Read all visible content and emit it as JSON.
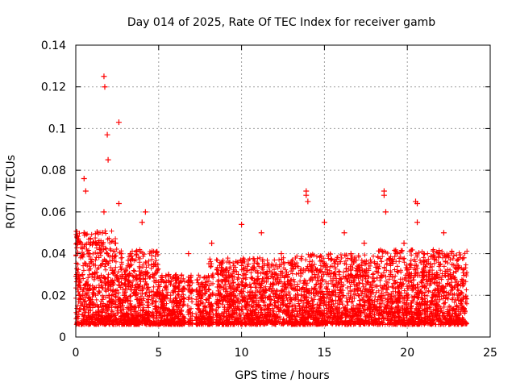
{
  "chart_data": {
    "type": "scatter",
    "title": "Day 014 of 2025, Rate Of TEC Index for receiver gamb",
    "xlabel": "GPS time / hours",
    "ylabel": "ROTI / TECUs",
    "xlim": [
      0,
      25
    ],
    "ylim": [
      0,
      0.14
    ],
    "xticks": [
      "0",
      "5",
      "10",
      "15",
      "20",
      "25"
    ],
    "yticks": [
      "0",
      "0.02",
      "0.04",
      "0.06",
      "0.08",
      "0.1",
      "0.12",
      "0.14"
    ],
    "grid": true,
    "marker": "plus",
    "color": "#ff0000",
    "series": [
      {
        "name": "ROTI",
        "x": [
          0.1,
          0.2,
          0.3,
          0.4,
          0.5,
          0.6,
          0.7,
          0.8,
          0.9,
          1.0,
          1.2,
          1.4,
          1.6,
          1.7,
          1.8,
          1.9,
          2.0,
          2.2,
          2.4,
          2.6,
          2.8,
          3.0,
          3.3,
          3.6,
          4.0,
          4.2,
          4.4,
          4.7,
          5.0,
          5.3,
          5.6,
          6.0,
          6.4,
          6.8,
          7.0,
          7.4,
          7.8,
          8.2,
          8.6,
          9.0,
          9.4,
          9.8,
          10.0,
          10.4,
          10.8,
          11.2,
          11.6,
          12.0,
          12.4,
          12.8,
          13.2,
          13.6,
          13.9,
          14.0,
          14.4,
          14.8,
          15.0,
          15.4,
          15.8,
          16.2,
          16.6,
          17.0,
          17.4,
          17.8,
          18.2,
          18.6,
          18.7,
          19.0,
          19.4,
          19.8,
          20.2,
          20.5,
          20.6,
          21.0,
          21.4,
          21.8,
          22.2,
          22.6,
          23.0,
          23.4,
          0.5,
          0.6,
          1.7,
          1.75,
          1.9,
          1.95,
          2.6,
          2.6,
          4.2,
          10.0,
          13.9,
          18.6,
          20.6
        ],
        "y": [
          0.045,
          0.02,
          0.015,
          0.03,
          0.05,
          0.035,
          0.025,
          0.04,
          0.018,
          0.03,
          0.045,
          0.022,
          0.05,
          0.06,
          0.035,
          0.04,
          0.02,
          0.032,
          0.045,
          0.025,
          0.015,
          0.03,
          0.04,
          0.02,
          0.055,
          0.03,
          0.018,
          0.035,
          0.025,
          0.02,
          0.03,
          0.028,
          0.018,
          0.04,
          0.022,
          0.015,
          0.025,
          0.045,
          0.03,
          0.025,
          0.018,
          0.03,
          0.022,
          0.035,
          0.02,
          0.05,
          0.028,
          0.03,
          0.04,
          0.025,
          0.035,
          0.02,
          0.07,
          0.065,
          0.03,
          0.025,
          0.055,
          0.02,
          0.035,
          0.05,
          0.04,
          0.03,
          0.045,
          0.025,
          0.035,
          0.07,
          0.06,
          0.03,
          0.04,
          0.045,
          0.035,
          0.065,
          0.055,
          0.04,
          0.035,
          0.03,
          0.05,
          0.03,
          0.025,
          0.038,
          0.076,
          0.07,
          0.125,
          0.12,
          0.097,
          0.085,
          0.103,
          0.064,
          0.06,
          0.054,
          0.068,
          0.068,
          0.064
        ]
      }
    ]
  }
}
